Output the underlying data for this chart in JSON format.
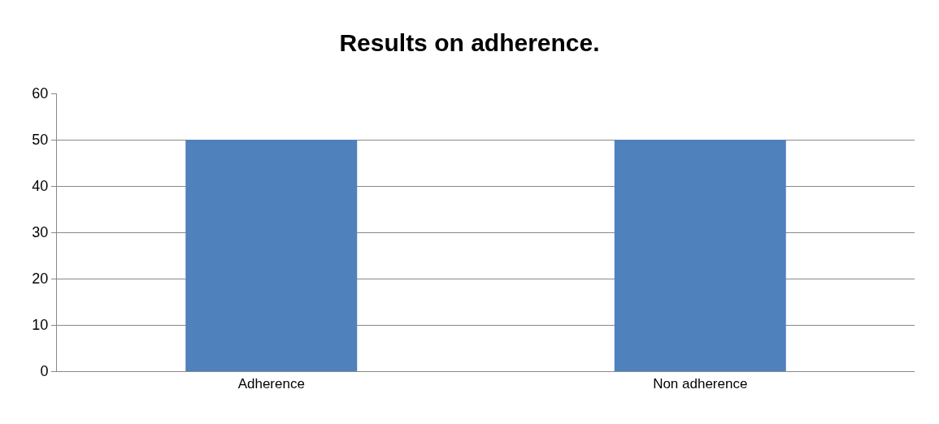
{
  "chart_data": {
    "type": "bar",
    "title": "Results on adherence.",
    "categories": [
      "Adherence",
      "Non adherence"
    ],
    "values": [
      50,
      50
    ],
    "color": "#4f81bd",
    "ylim": [
      0,
      60
    ],
    "yticks": [
      0,
      10,
      20,
      30,
      40,
      50,
      60
    ],
    "grid": "y",
    "legend": false
  }
}
